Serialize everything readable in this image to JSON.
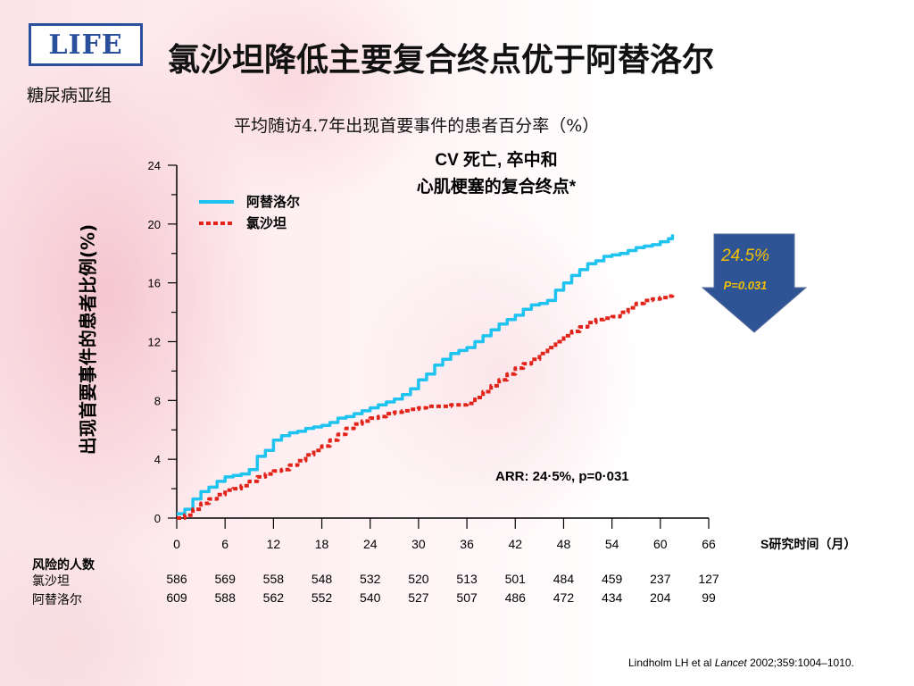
{
  "header": {
    "logo_text": "LIFE",
    "title": "氯沙坦降低主要复合终点优于阿替洛尔",
    "subgroup": "糖尿病亚组",
    "subtitle": "平均随访4.7年出现首要事件的患者百分率（%）"
  },
  "chart_data": {
    "type": "line",
    "title_line1": "CV 死亡, 卒中和",
    "title_line2": "心肌梗塞的复合终点*",
    "ylabel": "出现首要事件的患者比例(%)",
    "xlabel": "S研究时间（月）",
    "xlim": [
      0,
      66
    ],
    "ylim": [
      0,
      24
    ],
    "x_ticks": [
      0,
      6,
      12,
      18,
      24,
      30,
      36,
      42,
      48,
      54,
      60,
      66
    ],
    "y_ticks": [
      0,
      4,
      8,
      12,
      16,
      20,
      24
    ],
    "legend_position": "top-left",
    "series": [
      {
        "name": "阿替洛尔",
        "color": "#1ec3f0",
        "style": "solid",
        "x": [
          0,
          1,
          2,
          3,
          4,
          5,
          6,
          7,
          8,
          9,
          10,
          11,
          12,
          13,
          14,
          15,
          16,
          17,
          18,
          19,
          20,
          21,
          22,
          23,
          24,
          25,
          26,
          27,
          28,
          29,
          30,
          31,
          32,
          33,
          34,
          35,
          36,
          37,
          38,
          39,
          40,
          41,
          42,
          43,
          44,
          45,
          46,
          47,
          48,
          49,
          50,
          51,
          52,
          53,
          54,
          55,
          56,
          57,
          58,
          59,
          60,
          61,
          61.5
        ],
        "y": [
          0.3,
          0.6,
          1.3,
          1.8,
          2.1,
          2.5,
          2.8,
          2.9,
          3.0,
          3.3,
          4.2,
          4.6,
          5.3,
          5.6,
          5.8,
          5.9,
          6.1,
          6.2,
          6.3,
          6.5,
          6.8,
          6.9,
          7.1,
          7.3,
          7.5,
          7.7,
          7.9,
          8.1,
          8.4,
          8.8,
          9.4,
          9.8,
          10.4,
          10.8,
          11.2,
          11.4,
          11.6,
          12.0,
          12.4,
          12.8,
          13.2,
          13.5,
          13.8,
          14.2,
          14.5,
          14.6,
          14.8,
          15.5,
          16.0,
          16.5,
          16.9,
          17.3,
          17.5,
          17.8,
          17.9,
          18.0,
          18.2,
          18.4,
          18.5,
          18.6,
          18.8,
          19.0,
          19.3
        ]
      },
      {
        "name": "氯沙坦",
        "color": "#e2231a",
        "style": "dotted",
        "x": [
          0,
          1,
          2,
          3,
          4,
          5,
          6,
          7,
          8,
          9,
          10,
          11,
          12,
          13,
          14,
          15,
          16,
          17,
          18,
          19,
          20,
          21,
          22,
          23,
          24,
          25,
          26,
          27,
          28,
          29,
          30,
          31,
          32,
          33,
          34,
          35,
          36,
          37,
          38,
          39,
          40,
          41,
          42,
          43,
          44,
          45,
          46,
          47,
          48,
          49,
          50,
          51,
          52,
          53,
          54,
          55,
          56,
          57,
          58,
          59,
          60,
          61,
          61.5
        ],
        "y": [
          0.0,
          0.2,
          0.6,
          1.0,
          1.3,
          1.6,
          1.9,
          2.0,
          2.2,
          2.5,
          2.8,
          3.0,
          3.2,
          3.3,
          3.6,
          3.9,
          4.3,
          4.6,
          4.9,
          5.3,
          5.7,
          6.1,
          6.4,
          6.6,
          6.8,
          6.9,
          7.1,
          7.2,
          7.3,
          7.4,
          7.5,
          7.6,
          7.6,
          7.6,
          7.7,
          7.7,
          7.8,
          8.2,
          8.6,
          9.0,
          9.4,
          9.8,
          10.2,
          10.5,
          10.8,
          11.2,
          11.6,
          12.0,
          12.4,
          12.7,
          13.0,
          13.3,
          13.5,
          13.6,
          13.7,
          14.0,
          14.3,
          14.6,
          14.8,
          14.9,
          15.0,
          15.1,
          15.3
        ]
      }
    ],
    "annotation_arr": "ARR: 24·5%, p=0·031",
    "arrow_percent": "24.5%",
    "arrow_p": "P=0.031",
    "arrow_color": "#2f5496",
    "arrow_text_color": "#f0c000"
  },
  "risk_table": {
    "header": "风险的人数",
    "rows": [
      {
        "label": "氯沙坦",
        "values": [
          "586",
          "569",
          "558",
          "548",
          "532",
          "520",
          "513",
          "501",
          "484",
          "459",
          "237",
          "127"
        ]
      },
      {
        "label": "阿替洛尔",
        "values": [
          "609",
          "588",
          "562",
          "552",
          "540",
          "527",
          "507",
          "486",
          "472",
          "434",
          "204",
          "99"
        ]
      }
    ]
  },
  "citation": {
    "prefix": "Lindholm LH et al ",
    "journal": "Lancet",
    "suffix": " 2002;359:1004–1010."
  }
}
